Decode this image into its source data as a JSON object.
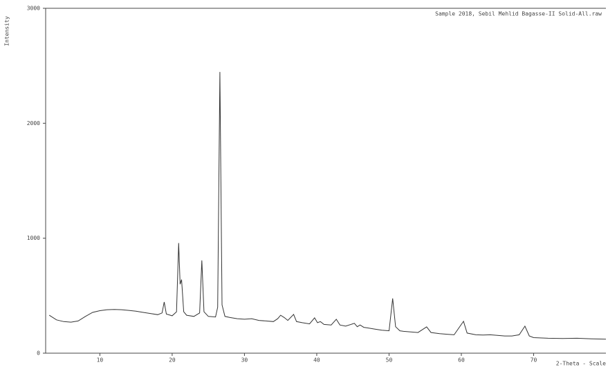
{
  "chart_data": {
    "type": "line",
    "title": "Sample 2018, Sebil Mehlid Bagasse-II Solid-All.raw",
    "y_label": "Intensity",
    "x_label": "2-Theta - Scale",
    "xlim": [
      2.5,
      80
    ],
    "xticks": [
      10,
      20,
      30,
      40,
      50,
      60,
      70
    ],
    "ylim": [
      0,
      3000
    ],
    "yticks": [
      0,
      1000,
      2000,
      3000
    ],
    "series": [
      {
        "color": "#333333",
        "x": [
          3,
          4,
          5,
          6,
          7,
          8,
          9,
          10,
          11,
          12,
          13,
          14,
          15,
          16,
          17,
          18,
          18.6,
          18.9,
          19.2,
          20,
          20.6,
          20.9,
          21.1,
          21.3,
          21.6,
          22,
          23,
          23.8,
          24.1,
          24.4,
          25,
          26,
          26.3,
          26.6,
          26.9,
          27.3,
          28,
          29,
          30,
          31,
          32,
          33,
          34,
          34.6,
          35,
          35.5,
          36,
          36.8,
          37.2,
          38,
          39,
          39.7,
          40.1,
          40.5,
          41,
          42,
          42.7,
          43.2,
          44,
          45.2,
          45.6,
          46,
          46.5,
          47,
          48,
          49,
          50,
          50.5,
          50.9,
          51.5,
          52,
          53,
          54,
          55.2,
          55.8,
          57,
          58,
          59,
          60.3,
          60.8,
          62,
          63,
          64,
          65,
          66,
          67,
          68,
          68.8,
          69.4,
          70,
          72,
          74,
          76,
          78,
          80
        ],
        "values": [
          330,
          290,
          275,
          270,
          280,
          320,
          355,
          370,
          378,
          380,
          378,
          372,
          365,
          355,
          345,
          335,
          350,
          445,
          340,
          325,
          360,
          958,
          600,
          640,
          360,
          330,
          320,
          350,
          807,
          360,
          320,
          315,
          400,
          2446,
          420,
          320,
          310,
          300,
          295,
          300,
          285,
          280,
          275,
          300,
          330,
          310,
          285,
          337,
          275,
          265,
          255,
          307,
          265,
          275,
          250,
          245,
          295,
          245,
          235,
          260,
          230,
          245,
          225,
          220,
          210,
          200,
          195,
          476,
          230,
          195,
          190,
          185,
          180,
          229,
          180,
          170,
          165,
          160,
          277,
          175,
          160,
          158,
          160,
          155,
          150,
          150,
          160,
          235,
          150,
          135,
          130,
          128,
          130,
          125,
          122
        ]
      }
    ]
  }
}
